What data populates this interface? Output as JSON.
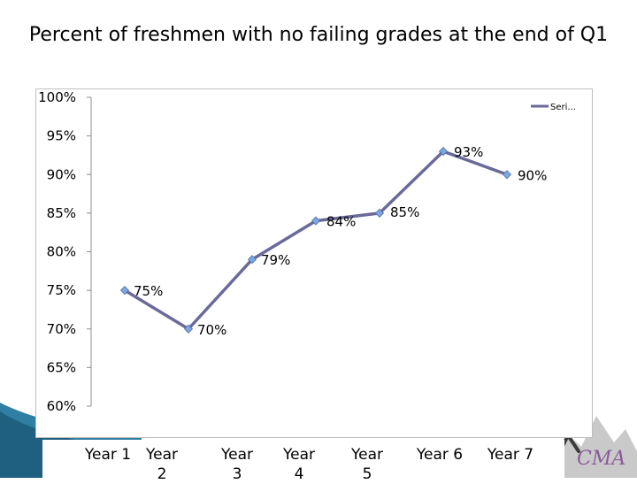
{
  "chart_data": {
    "type": "line",
    "title": "Percent of freshmen with no failing grades at the end of Q1",
    "categories": [
      "Year 1",
      "Year 2",
      "Year 3",
      "Year 4",
      "Year 5",
      "Year 6",
      "Year 7"
    ],
    "series": [
      {
        "name": "Seri...",
        "values": [
          75,
          70,
          79,
          84,
          85,
          93,
          90
        ],
        "labels": [
          "75%",
          "70%",
          "79%",
          "84%",
          "85%",
          "93%",
          "90%"
        ],
        "color": "#6a6a9a",
        "marker_color": "#7ea6e0"
      }
    ],
    "ylim": [
      60,
      100
    ],
    "yticks": [
      100,
      95,
      90,
      85,
      80,
      75,
      70,
      65,
      60
    ],
    "ytick_labels": [
      "100%",
      "95%",
      "90%",
      "85%",
      "80%",
      "75%",
      "70%",
      "65%",
      "60%"
    ],
    "grid": false,
    "legend": "top-right"
  }
}
